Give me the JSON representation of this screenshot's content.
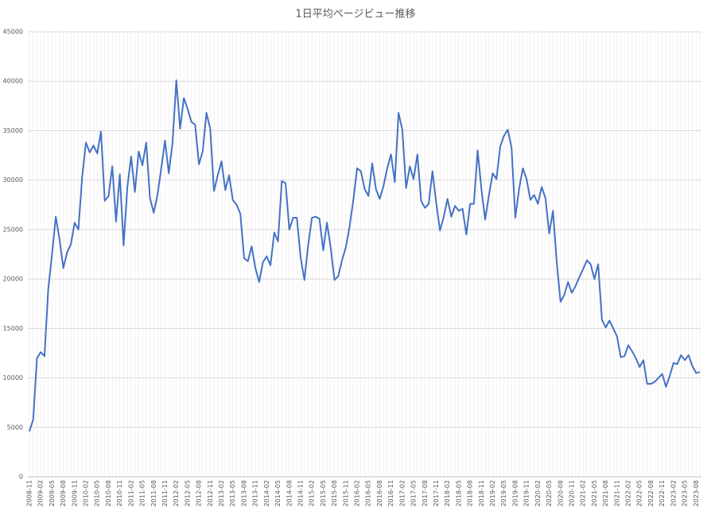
{
  "chart_data": {
    "type": "line",
    "title": "1日平均ページビュー推移",
    "categories": [
      "2008-11",
      null,
      null,
      "2009-02",
      null,
      null,
      "2009-05",
      null,
      null,
      "2009-08",
      null,
      null,
      "2009-11",
      null,
      null,
      "2010-02",
      null,
      null,
      "2010-05",
      null,
      null,
      "2010-08",
      null,
      null,
      "2010-11",
      null,
      null,
      "2011-02",
      null,
      null,
      "2011-05",
      null,
      null,
      "2011-08",
      null,
      null,
      "2011-11",
      null,
      null,
      "2012-02",
      null,
      null,
      "2012-05",
      null,
      null,
      "2012-08",
      null,
      null,
      "2012-11",
      null,
      null,
      "2013-02",
      null,
      null,
      "2013-05",
      null,
      null,
      "2013-08",
      null,
      null,
      "2013-11",
      null,
      null,
      "2014-02",
      null,
      null,
      "2014-05",
      null,
      null,
      "2014-08",
      null,
      null,
      "2014-11",
      null,
      null,
      "2015-02",
      null,
      null,
      "2015-05",
      null,
      null,
      "2015-08",
      null,
      null,
      "2015-11",
      null,
      null,
      "2016-02",
      null,
      null,
      "2016-05",
      null,
      null,
      "2016-08",
      null,
      null,
      "2016-11",
      null,
      null,
      "2017-02",
      null,
      null,
      "2017-05",
      null,
      null,
      "2017-08",
      null,
      null,
      "2017-11",
      null,
      null,
      "2018-02",
      null,
      null,
      "2018-05",
      null,
      null,
      "2018-08",
      null,
      null,
      "2018-11",
      null,
      null,
      "2019-02",
      null,
      null,
      "2019-05",
      null,
      null,
      "2019-08",
      null,
      null,
      "2019-11",
      null,
      null,
      "2020-02",
      null,
      null,
      "2020-05",
      null,
      null,
      "2020-08",
      null,
      null,
      "2020-11",
      null,
      null,
      "2021-02",
      null,
      null,
      "2021-05",
      null,
      null,
      "2021-08",
      null,
      null,
      "2021-11",
      null,
      null,
      "2022-02",
      null,
      null,
      "2022-05",
      null,
      null,
      "2022-08",
      null,
      null,
      "2022-11",
      null,
      null,
      "2023-02",
      null,
      null,
      "2023-05",
      null,
      null,
      "2023-08",
      null
    ],
    "values": [
      4600,
      5800,
      12000,
      12600,
      12200,
      19000,
      22500,
      26300,
      24000,
      21100,
      22700,
      23500,
      25700,
      25000,
      30300,
      33800,
      32800,
      33500,
      32700,
      34900,
      27900,
      28400,
      31400,
      25800,
      30600,
      23400,
      29300,
      32400,
      28800,
      32900,
      31500,
      33800,
      28200,
      26700,
      28500,
      31200,
      34000,
      30700,
      33800,
      40100,
      35200,
      38300,
      37200,
      35900,
      35600,
      31600,
      32900,
      36800,
      35200,
      28900,
      30500,
      31900,
      29000,
      30500,
      28000,
      27500,
      26600,
      22100,
      21800,
      23300,
      21100,
      19700,
      21700,
      22300,
      21400,
      24700,
      23800,
      29900,
      29700,
      25000,
      26200,
      26200,
      22200,
      19900,
      23400,
      26200,
      26300,
      26100,
      22900,
      25700,
      23100,
      19900,
      20300,
      21900,
      23200,
      25300,
      28000,
      31200,
      30900,
      29100,
      28400,
      31700,
      29100,
      28100,
      29400,
      31200,
      32600,
      29800,
      36800,
      35100,
      29200,
      31400,
      30100,
      32600,
      27900,
      27200,
      27600,
      30900,
      27700,
      24900,
      26300,
      28100,
      26300,
      27400,
      26900,
      27100,
      24500,
      27600,
      27600,
      33000,
      29100,
      26000,
      28500,
      30700,
      30100,
      33400,
      34500,
      35100,
      33300,
      26200,
      29100,
      31200,
      30100,
      28000,
      28500,
      27600,
      29300,
      28200,
      24600,
      26900,
      21700,
      17700,
      18400,
      19700,
      18600,
      19300,
      20200,
      21000,
      21900,
      21500,
      20000,
      21500,
      15900,
      15100,
      15800,
      15000,
      14200,
      12100,
      12200,
      13300,
      12700,
      12000,
      11100,
      11800,
      9400,
      9400,
      9600,
      10000,
      10400,
      9100,
      10200,
      11500,
      11400,
      12300,
      11800,
      12300,
      11200,
      10500,
      10600
    ],
    "color": "#4472c4",
    "ylim": [
      0,
      45000
    ],
    "yticks": [
      0,
      5000,
      10000,
      15000,
      20000,
      25000,
      30000,
      35000,
      40000,
      45000
    ],
    "grid": true
  }
}
